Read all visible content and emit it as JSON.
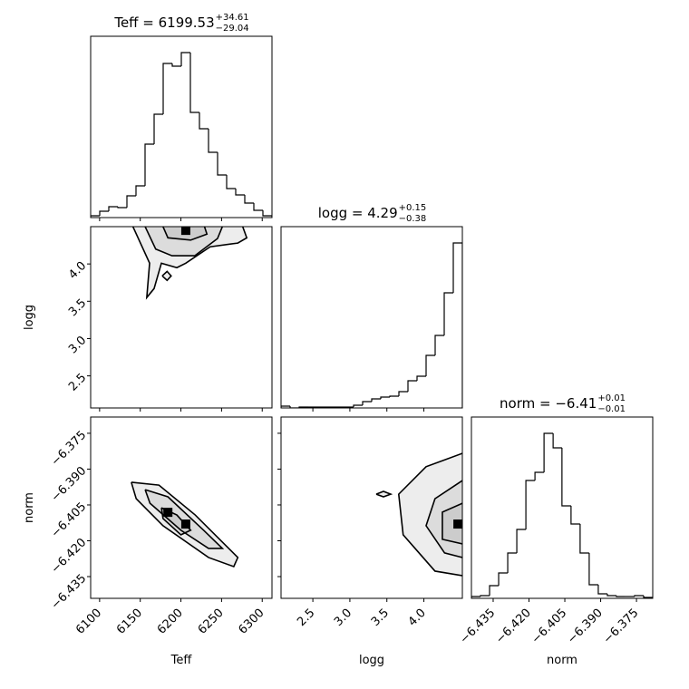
{
  "chart_data": [
    {
      "type": "histogram",
      "title": "Teff = 6199.53",
      "title_upper": "+34.61",
      "title_lower": "−29.04",
      "bins": [
        6089,
        6100.15,
        6111.3,
        6122.45,
        6133.6,
        6144.75,
        6155.9,
        6167.05,
        6178.2,
        6189.35,
        6200.5,
        6211.65,
        6222.8,
        6233.95,
        6245.1,
        6256.25,
        6267.4,
        6278.55,
        6289.7,
        6300.85,
        6312
      ],
      "counts": [
        2,
        7,
        12,
        11,
        24,
        35,
        81,
        114,
        170,
        167,
        182,
        116,
        98,
        72,
        47,
        32,
        25,
        16,
        8,
        2
      ],
      "xlim": [
        6089,
        6312
      ],
      "ylim": [
        0,
        200
      ],
      "xticks": [
        6100,
        6150,
        6200,
        6250,
        6300
      ],
      "color": "#000000"
    },
    {
      "type": "contour",
      "ylabel": "logg",
      "xlim": [
        6089,
        6312
      ],
      "ylim": [
        2.07,
        4.5
      ],
      "xticks": [
        6100,
        6150,
        6200,
        6250,
        6300
      ],
      "yticks": [
        2.5,
        {
          "value": 3,
          "label": "3.0"
        },
        3.5,
        {
          "value": 4,
          "label": "4.0"
        }
      ],
      "contours": [
        {
          "x": [
            6141,
            6161.5,
            6158,
            6167,
            6176,
            6195,
            6206,
            6236,
            6270,
            6281,
            6276
          ],
          "y": [
            4.5,
            4.01,
            3.55,
            3.67,
            4.01,
            3.95,
            4.01,
            4.23,
            4.28,
            4.35,
            4.5
          ]
        },
        {
          "x": [
            6156,
            6169,
            6189,
            6217,
            6245,
            6251
          ],
          "y": [
            4.5,
            4.2,
            4.11,
            4.11,
            4.34,
            4.5
          ]
        },
        {
          "x": [
            6178,
            6184,
            6212,
            6232,
            6229
          ],
          "y": [
            4.5,
            4.35,
            4.32,
            4.4,
            4.5
          ]
        },
        {
          "x": [
            6177,
            6183,
            6188,
            6183,
            6177
          ],
          "y": [
            3.84,
            3.9,
            3.84,
            3.78,
            3.84
          ]
        }
      ],
      "peaks": {
        "x": [
          6206
        ],
        "y": [
          4.45
        ]
      },
      "color": "#000000"
    },
    {
      "type": "histogram",
      "title": "logg = 4.29",
      "title_upper": "+0.15",
      "title_lower": "−0.38",
      "bins": [
        2.07,
        2.1925,
        2.315,
        2.4375,
        2.56,
        2.6825,
        2.805,
        2.9275,
        3.05,
        3.1725,
        3.295,
        3.4175,
        3.54,
        3.6625,
        3.785,
        3.9075,
        4.03,
        4.1525,
        4.275,
        4.3975,
        4.52
      ],
      "counts": [
        2,
        0,
        1,
        1,
        1,
        1,
        1,
        1,
        3,
        7,
        10,
        12,
        13,
        18,
        30,
        35,
        58,
        80,
        127,
        182
      ],
      "xlim": [
        2.07,
        4.52
      ],
      "ylim": [
        0,
        200
      ],
      "xticks": [
        2.5,
        {
          "value": 3,
          "label": "3.0"
        },
        3.5,
        {
          "value": 4,
          "label": "4.0"
        }
      ],
      "color": "#000000"
    },
    {
      "type": "contour",
      "xlabel": "Teff",
      "ylabel": "norm",
      "xlim": [
        6089,
        6312
      ],
      "ylim": [
        -6.4441,
        -6.3682
      ],
      "xticks": [
        6100,
        6150,
        6200,
        6250,
        6300
      ],
      "yticks": [
        {
          "value": -6.435,
          "label": "−6.435"
        },
        {
          "value": -6.42,
          "label": "−6.420"
        },
        {
          "value": -6.405,
          "label": "−6.405"
        },
        {
          "value": -6.39,
          "label": "−6.390"
        },
        {
          "value": -6.375,
          "label": "−6.375"
        }
      ],
      "contours": [
        {
          "x": [
            6139,
            6173,
            6217.6,
            6270,
            6265,
            6234,
            6178,
            6145,
            6139
          ],
          "y": [
            -6.3955,
            -6.3967,
            -6.4092,
            -6.427,
            -6.4308,
            -6.427,
            -6.4137,
            -6.4024,
            -6.3955
          ]
        },
        {
          "x": [
            6156,
            6184,
            6228,
            6251,
            6234,
            6200,
            6162,
            6156
          ],
          "y": [
            -6.3986,
            -6.4016,
            -6.4156,
            -6.4232,
            -6.4232,
            -6.4156,
            -6.4043,
            -6.3986
          ]
        },
        {
          "x": [
            6176,
            6195,
            6212,
            6200,
            6178,
            6176
          ],
          "y": [
            -6.4062,
            -6.4092,
            -6.4156,
            -6.4175,
            -6.4107,
            -6.4062
          ]
        }
      ],
      "peaks": {
        "x": [
          6184,
          6206
        ],
        "y": [
          -6.4081,
          -6.413
        ]
      },
      "color": "#000000"
    },
    {
      "type": "contour",
      "xlabel": "logg",
      "xlim": [
        2.07,
        4.52
      ],
      "ylim": [
        -6.4441,
        -6.3682
      ],
      "xticks": [
        2.5,
        {
          "value": 3,
          "label": "3.0"
        },
        3.5,
        {
          "value": 4,
          "label": "4.0"
        }
      ],
      "yticks": [
        {
          "value": -6.435,
          "label": "−6.435"
        },
        {
          "value": -6.42,
          "label": "−6.420"
        },
        {
          "value": -6.405,
          "label": "−6.405"
        },
        {
          "value": -6.39,
          "label": "−6.390"
        },
        {
          "value": -6.375,
          "label": "−6.375"
        }
      ],
      "contours": [
        {
          "x": [
            4.52,
            4.03,
            3.66,
            3.72,
            4.15,
            4.52
          ],
          "y": [
            -6.3834,
            -6.389,
            -6.4005,
            -6.4175,
            -6.4327,
            -6.4346
          ]
        },
        {
          "x": [
            4.52,
            4.15,
            4.03,
            4.28,
            4.52
          ],
          "y": [
            -6.3948,
            -6.4024,
            -6.4137,
            -6.4251,
            -6.427
          ]
        },
        {
          "x": [
            4.52,
            4.25,
            4.25,
            4.52
          ],
          "y": [
            -6.4043,
            -6.408,
            -6.4194,
            -6.4213
          ]
        },
        {
          "x": [
            3.356,
            3.454,
            3.552,
            3.454,
            3.356
          ],
          "y": [
            -6.4005,
            -6.3993,
            -6.4005,
            -6.4016,
            -6.4005
          ]
        }
      ],
      "peaks": {
        "x": [
          4.46
        ],
        "y": [
          -6.413
        ]
      },
      "color": "#000000"
    },
    {
      "type": "histogram",
      "xlabel": "norm",
      "title": "norm = −6.41",
      "title_upper": "+0.01",
      "title_lower": "−0.01",
      "bins": [
        -6.4441,
        -6.4403,
        -6.4365,
        -6.4327,
        -6.4289,
        -6.4251,
        -6.4213,
        -6.4175,
        -6.4137,
        -6.4099,
        -6.4062,
        -6.4024,
        -6.3986,
        -6.3948,
        -6.391,
        -6.3872,
        -6.3834,
        -6.3796,
        -6.3758,
        -6.372,
        -6.3682
      ],
      "counts": [
        2,
        3,
        14,
        28,
        50,
        76,
        130,
        139,
        182,
        166,
        102,
        82,
        50,
        15,
        5,
        3,
        2,
        2,
        3,
        1
      ],
      "xlim": [
        -6.4441,
        -6.3682
      ],
      "ylim": [
        0,
        200
      ],
      "xticks": [
        {
          "value": -6.435,
          "label": "−6.435"
        },
        {
          "value": -6.42,
          "label": "−6.420"
        },
        {
          "value": -6.405,
          "label": "−6.405"
        },
        {
          "value": -6.39,
          "label": "−6.390"
        },
        {
          "value": -6.375,
          "label": "−6.375"
        }
      ],
      "color": "#000000"
    }
  ]
}
